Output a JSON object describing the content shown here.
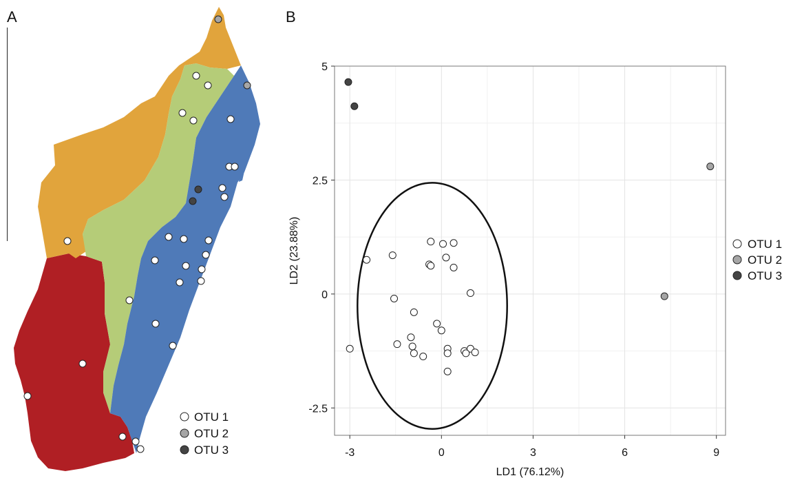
{
  "panels": {
    "a_label": "A",
    "b_label": "B"
  },
  "map": {
    "legend": [
      {
        "label": "OTU 1",
        "color": "#ffffff"
      },
      {
        "label": "OTU 2",
        "color": "#a6a6a6"
      },
      {
        "label": "OTU 3",
        "color": "#444444"
      }
    ],
    "region_colors": {
      "north": "#e1a43c",
      "central": "#b5cc78",
      "east": "#4f7ab8",
      "southwest": "#b01f24"
    }
  },
  "chart_data": {
    "type": "scatter",
    "xlabel": "LD1 (76.12%)",
    "ylabel": "LD2 (23.88%)",
    "xlim": [
      -3.5,
      9.3
    ],
    "ylim": [
      -3.1,
      5.0
    ],
    "xticks": [
      {
        "value": -3,
        "label": "-3"
      },
      {
        "value": 0,
        "label": "0"
      },
      {
        "value": 3,
        "label": "3"
      },
      {
        "value": 6,
        "label": "6"
      },
      {
        "value": 9,
        "label": "9"
      }
    ],
    "yticks": [
      {
        "value": 5,
        "label": "5"
      },
      {
        "value": 2.5,
        "label": "2.5"
      },
      {
        "value": 0,
        "label": "0"
      },
      {
        "value": -2.5,
        "label": "-2.5"
      }
    ],
    "grid": true,
    "legend_position": "right",
    "ellipse": {
      "cx": -0.3,
      "cy": -0.26,
      "rx": 2.45,
      "ry": 2.7
    },
    "series": [
      {
        "name": "OTU 1",
        "color": "#ffffff",
        "points": [
          [
            -0.35,
            1.15
          ],
          [
            0.05,
            1.1
          ],
          [
            0.4,
            1.12
          ],
          [
            -2.45,
            0.75
          ],
          [
            -1.6,
            0.85
          ],
          [
            0.15,
            0.8
          ],
          [
            -0.4,
            0.65
          ],
          [
            -0.35,
            0.62
          ],
          [
            0.4,
            0.58
          ],
          [
            -1.55,
            -0.1
          ],
          [
            0.95,
            0.02
          ],
          [
            -0.9,
            -0.4
          ],
          [
            -0.15,
            -0.65
          ],
          [
            0.0,
            -0.8
          ],
          [
            -1.0,
            -0.95
          ],
          [
            -1.45,
            -1.1
          ],
          [
            -0.95,
            -1.15
          ],
          [
            -3.0,
            -1.2
          ],
          [
            0.2,
            -1.2
          ],
          [
            0.75,
            -1.25
          ],
          [
            0.95,
            -1.2
          ],
          [
            1.1,
            -1.28
          ],
          [
            0.8,
            -1.3
          ],
          [
            0.2,
            -1.3
          ],
          [
            -0.9,
            -1.3
          ],
          [
            -0.6,
            -1.37
          ],
          [
            0.2,
            -1.7
          ]
        ]
      },
      {
        "name": "OTU 2",
        "color": "#a6a6a6",
        "points": [
          [
            8.8,
            2.8
          ],
          [
            7.3,
            -0.05
          ]
        ]
      },
      {
        "name": "OTU 3",
        "color": "#444444",
        "points": [
          [
            -3.05,
            4.65
          ],
          [
            -2.85,
            4.12
          ]
        ]
      }
    ]
  }
}
